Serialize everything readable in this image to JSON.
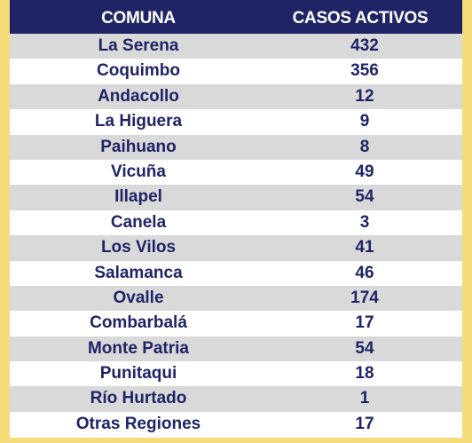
{
  "header": {
    "commune": "COMUNA",
    "cases": "CASOS ACTIVOS"
  },
  "colors": {
    "header_bg": "#1f2466",
    "text": "#1f2466",
    "row_shade": "#d9d9d9",
    "frame": "#f5dc79"
  },
  "rows": [
    {
      "commune": "La Serena",
      "cases": "432"
    },
    {
      "commune": "Coquimbo",
      "cases": "356"
    },
    {
      "commune": "Andacollo",
      "cases": "12"
    },
    {
      "commune": "La Higuera",
      "cases": "9"
    },
    {
      "commune": "Paihuano",
      "cases": "8"
    },
    {
      "commune": "Vicuña",
      "cases": "49"
    },
    {
      "commune": "Illapel",
      "cases": "54"
    },
    {
      "commune": "Canela",
      "cases": "3"
    },
    {
      "commune": "Los Vilos",
      "cases": "41"
    },
    {
      "commune": "Salamanca",
      "cases": "46"
    },
    {
      "commune": "Ovalle",
      "cases": "174"
    },
    {
      "commune": "Combarbalá",
      "cases": "17"
    },
    {
      "commune": "Monte Patria",
      "cases": "54"
    },
    {
      "commune": "Punitaqui",
      "cases": "18"
    },
    {
      "commune": "Río Hurtado",
      "cases": "1"
    },
    {
      "commune": "Otras Regiones",
      "cases": "17"
    }
  ]
}
